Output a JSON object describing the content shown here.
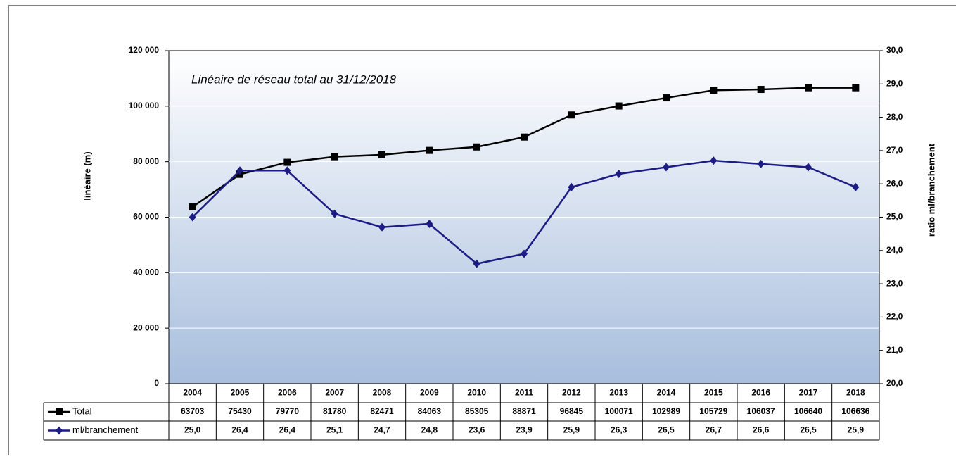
{
  "chart_data": {
    "type": "line",
    "title": "Linéaire de réseau total au 31/12/2018",
    "y_label": "linéaire (m)",
    "y2_label": "ratio ml/branchement",
    "categories": [
      "2004",
      "2005",
      "2006",
      "2007",
      "2008",
      "2009",
      "2010",
      "2011",
      "2012",
      "2013",
      "2014",
      "2015",
      "2016",
      "2017",
      "2018"
    ],
    "series": [
      {
        "name": "Total",
        "color": "#000000",
        "marker": "square",
        "values": [
          63703,
          75430,
          79770,
          81780,
          82471,
          84063,
          85305,
          88871,
          96845,
          100071,
          102989,
          105729,
          106037,
          106640,
          106636
        ]
      },
      {
        "name": "ml/branchement",
        "color": "#1c1c84",
        "marker": "diamond",
        "axis": "y2",
        "values": [
          25.0,
          26.4,
          26.4,
          25.1,
          24.7,
          24.8,
          23.6,
          23.9,
          25.9,
          26.3,
          26.5,
          26.7,
          26.6,
          26.5,
          25.9
        ],
        "value_labels": [
          "25,0",
          "26,4",
          "26,4",
          "25,1",
          "24,7",
          "24,8",
          "23,6",
          "23,9",
          "25,9",
          "26,3",
          "26,5",
          "26,7",
          "26,6",
          "26,5",
          "25,9"
        ]
      }
    ],
    "ylim": [
      0,
      120000
    ],
    "yticks": [
      0,
      {
        "value": 20000,
        "label": "20 000"
      },
      {
        "value": 40000,
        "label": "40 000"
      },
      {
        "value": 60000,
        "label": "60 000"
      },
      {
        "value": 80000,
        "label": "80 000"
      },
      {
        "value": 100000,
        "label": "100 000"
      },
      {
        "value": 120000,
        "label": "120 000"
      }
    ],
    "y2lim": [
      20,
      30
    ],
    "y2ticks": [
      {
        "value": 20,
        "label": "20,0"
      },
      {
        "value": 21,
        "label": "21,0"
      },
      {
        "value": 22,
        "label": "22,0"
      },
      {
        "value": 23,
        "label": "23,0"
      },
      {
        "value": 24,
        "label": "24,0"
      },
      {
        "value": 25,
        "label": "25,0"
      },
      {
        "value": 26,
        "label": "26,0"
      },
      {
        "value": 27,
        "label": "27,0"
      },
      {
        "value": 28,
        "label": "28,0"
      },
      {
        "value": 29,
        "label": "29,0"
      },
      {
        "value": 30,
        "label": "30,0"
      }
    ],
    "grid": true
  }
}
